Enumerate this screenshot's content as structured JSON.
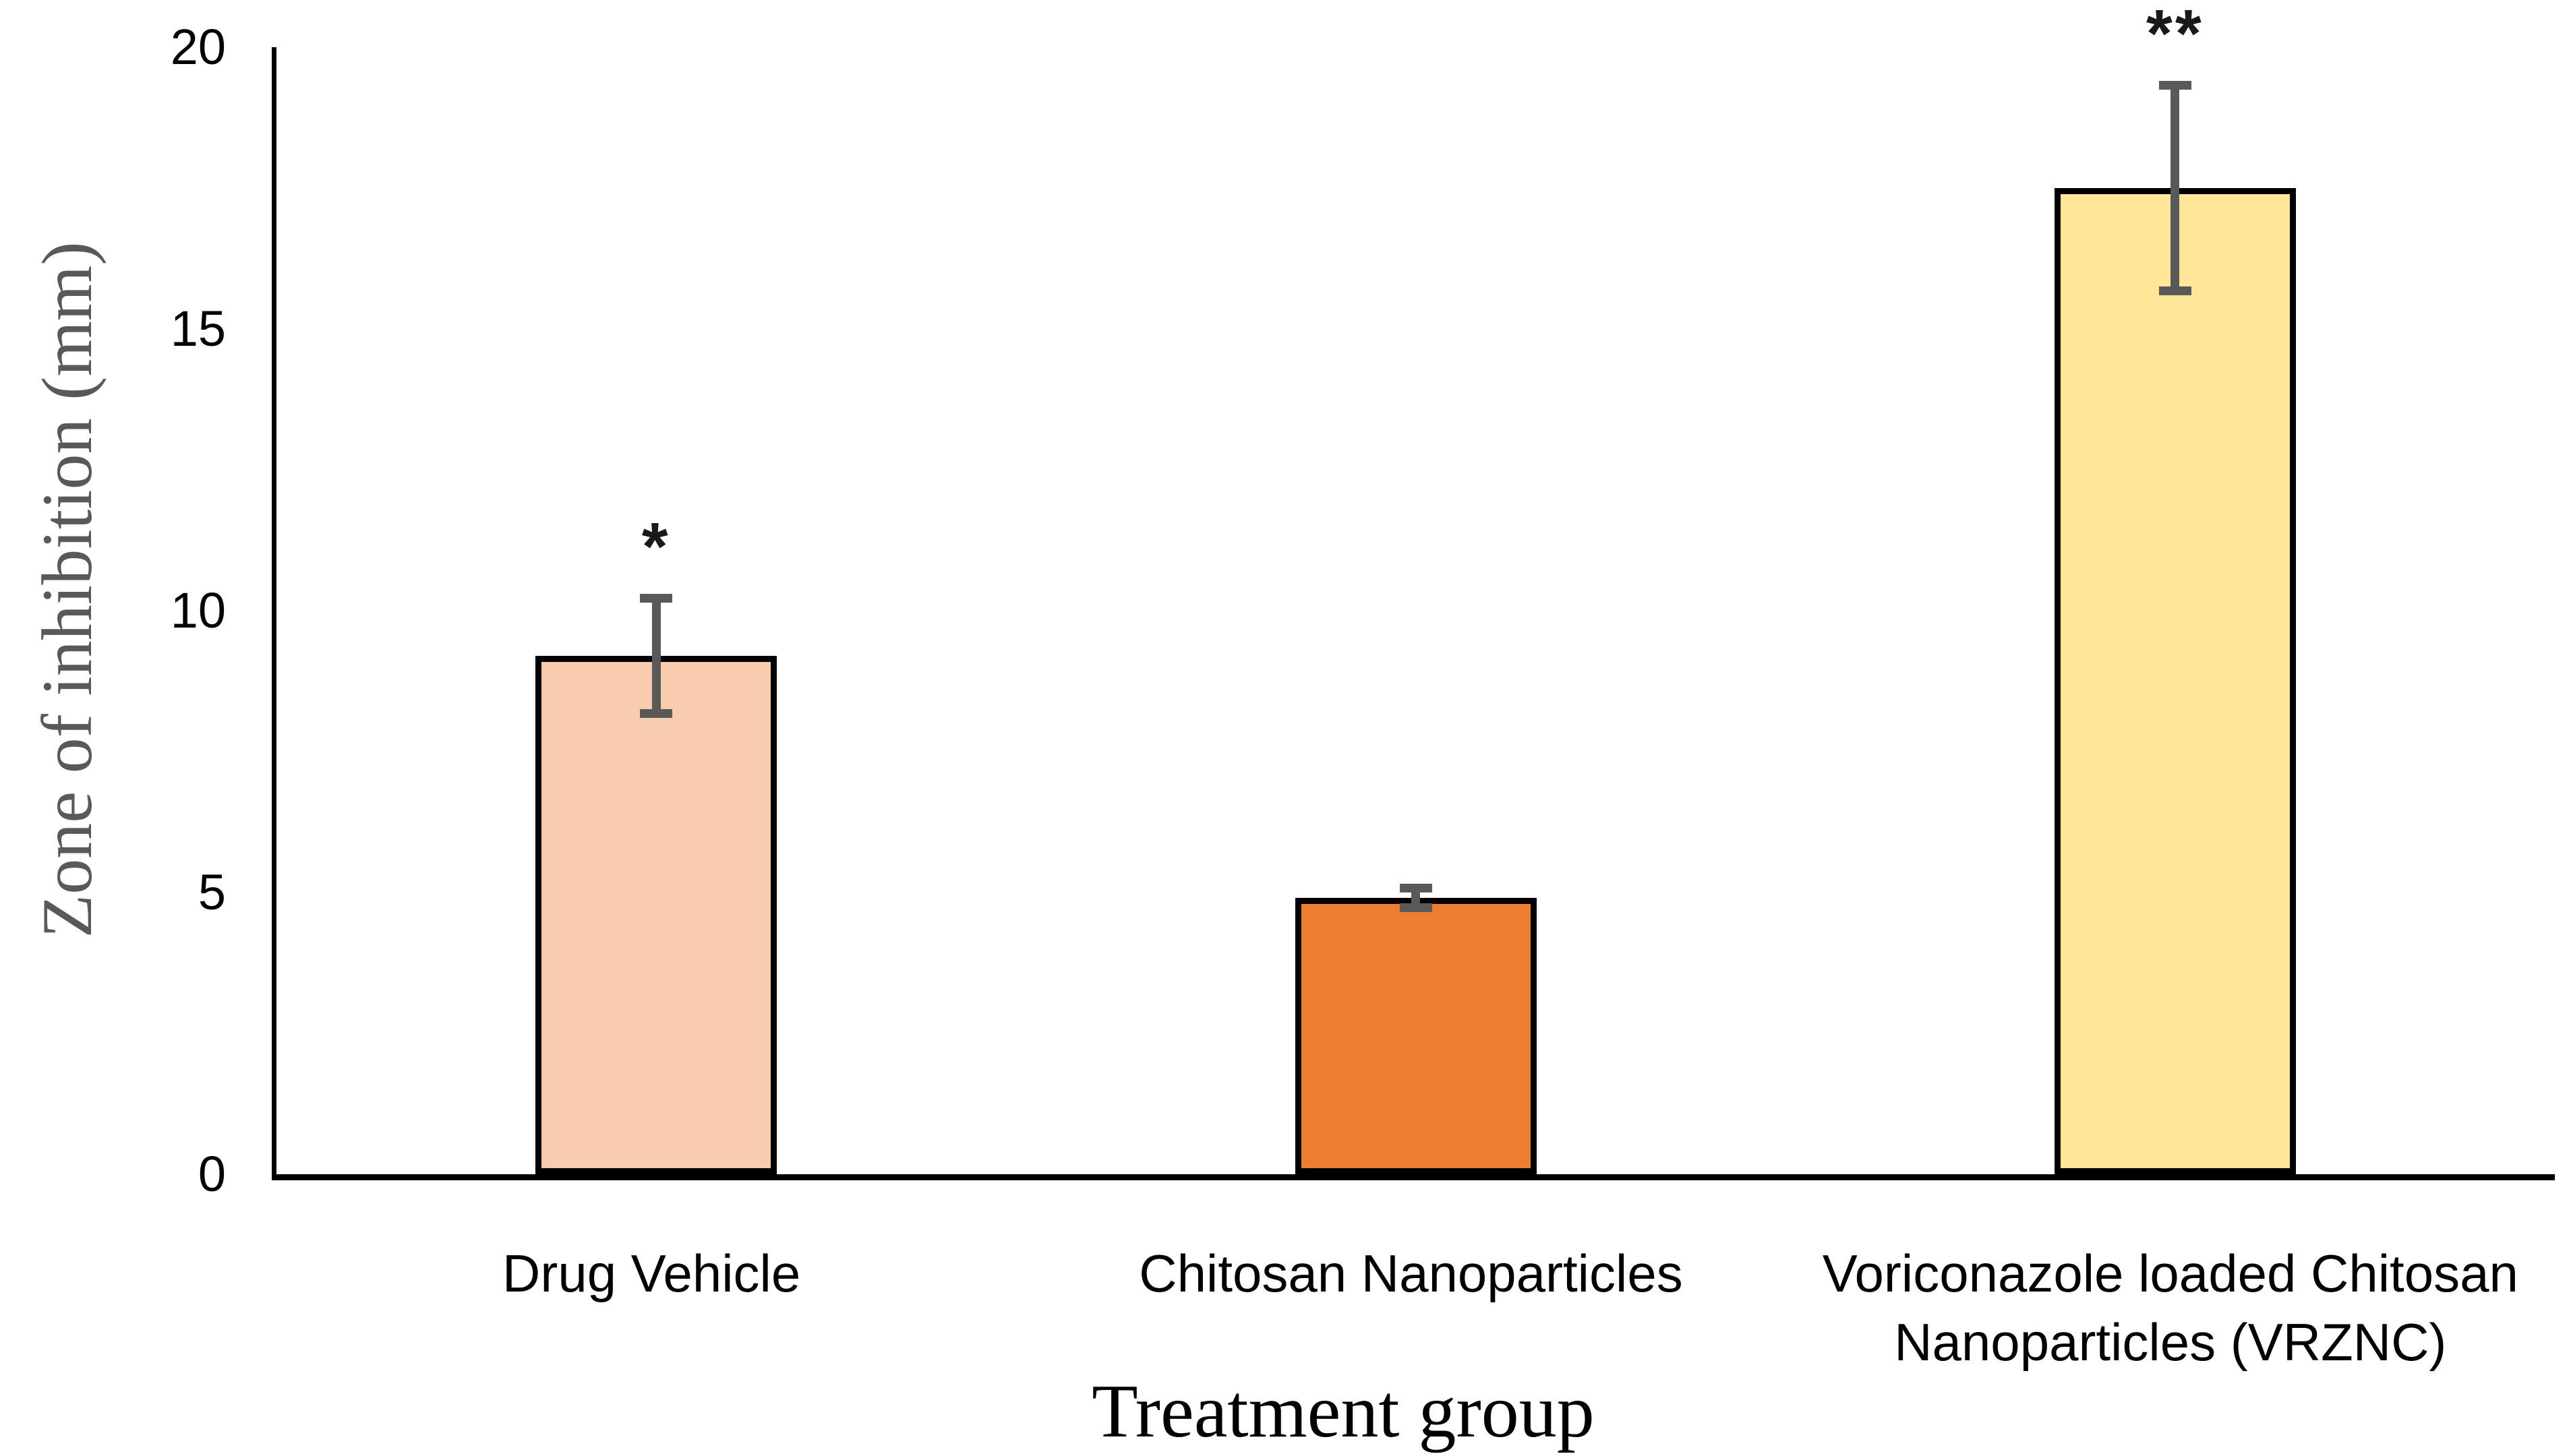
{
  "chart_data": {
    "type": "bar",
    "title": "",
    "categories": [
      "Drug Vehicle",
      "Chitosan Nanoparticles",
      "Voriconazole loaded Chitosan Nanoparticles (VRZNC)"
    ],
    "label_lines": [
      [
        "Drug Vehicle"
      ],
      [
        "Chitosan Nanoparticles"
      ],
      [
        "Voriconazole loaded Chitosan",
        "Nanoparticles (VRZNC)"
      ]
    ],
    "values": [
      9.2,
      4.9,
      17.5
    ],
    "error_bars": [
      1.1,
      0.25,
      1.9
    ],
    "significance": [
      "*",
      "",
      "**"
    ],
    "xlabel": "Treatment group",
    "ylabel": "Zone of inhibition (mm)",
    "ylim": [
      0,
      20
    ],
    "yticks": [
      0,
      5,
      10,
      15,
      20
    ],
    "grid": false,
    "legend": "none",
    "bar_colors": [
      "#F8CBAD",
      "#ED7D31",
      "#FFE699"
    ],
    "bar_border_color": "#000000",
    "error_bar_color": "#595959",
    "axis_color": "#000000",
    "ylabel_color": "#595959"
  }
}
